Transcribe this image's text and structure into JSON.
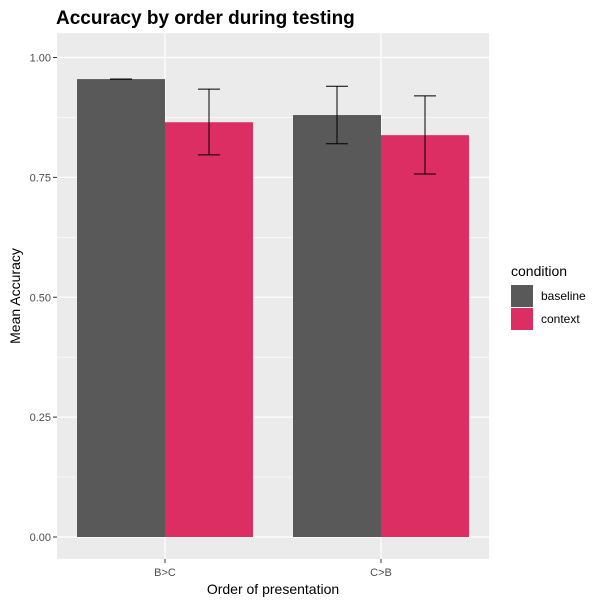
{
  "chart_data": {
    "type": "bar",
    "title": "Accuracy by order during testing",
    "xlabel": "Order of presentation",
    "ylabel": "Mean Accuracy",
    "categories": [
      "B>C",
      "C>B"
    ],
    "series": [
      {
        "name": "baseline",
        "color": "#595959",
        "values": [
          0.955,
          0.88
        ],
        "err_low": [
          0.955,
          0.82
        ],
        "err_high": [
          0.955,
          0.94
        ]
      },
      {
        "name": "context",
        "color": "#dc2e63",
        "values": [
          0.865,
          0.838
        ],
        "err_low": [
          0.797,
          0.757
        ],
        "err_high": [
          0.934,
          0.92
        ]
      }
    ],
    "ylim": [
      0,
      1.05
    ],
    "yticks": [
      0.0,
      0.25,
      0.5,
      0.75,
      1.0
    ],
    "ytick_labels": [
      "0.00",
      "0.25",
      "0.50",
      "0.75",
      "1.00"
    ],
    "legend_title": "condition",
    "legend_position": "right",
    "grid": true,
    "panel_background": "#ebebeb",
    "grid_color": "#ffffff"
  }
}
